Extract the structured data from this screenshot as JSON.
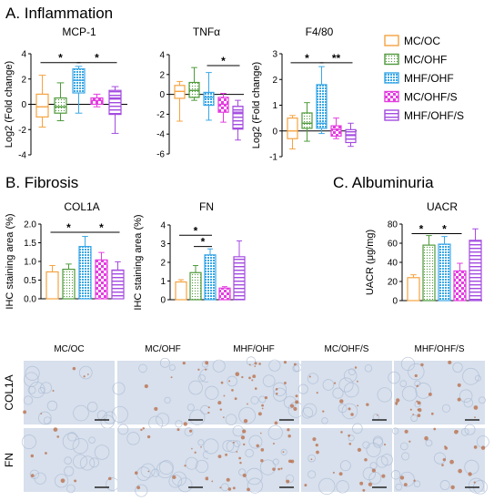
{
  "colors": {
    "MC_OC": "#f5a340",
    "MC_OHF": "#4e9a3a",
    "MHF_OHF": "#3ba7e6",
    "MC_OHF_S": "#e43ce0",
    "MHF_OHF_S": "#a44be0",
    "tissue": "#d7e0ec",
    "stain": "#b86a44"
  },
  "sections": {
    "inflammation": "A. Inflammation",
    "fibrosis": "B. Fibrosis",
    "albuminuria": "C. Albuminuria"
  },
  "legend": [
    "MC/OC",
    "MC/OHF",
    "MHF/OHF",
    "MC/OHF/S",
    "MHF/OHF/S"
  ],
  "chart_data": [
    {
      "type": "box",
      "id": "mcp1",
      "title": "MCP-1",
      "ylabel": "Log2 (Fold change)",
      "ylim": [
        -4,
        4
      ],
      "yticks": [
        "4",
        "2",
        "0",
        "-2",
        "-4"
      ],
      "ytick_values": [
        4,
        2,
        0,
        -2,
        -4
      ],
      "series": [
        {
          "name": "MC/OC",
          "min": -1.8,
          "q1": -1.0,
          "median": -0.2,
          "q3": 0.8,
          "max": 2.3
        },
        {
          "name": "MC/OHF",
          "min": -1.3,
          "q1": -0.7,
          "median": -0.2,
          "q3": 0.5,
          "max": 1.7
        },
        {
          "name": "MHF/OHF",
          "min": -0.7,
          "q1": 0.9,
          "median": 1.9,
          "q3": 2.8,
          "max": 3.0
        },
        {
          "name": "MC/OHF/S",
          "min": -0.2,
          "q1": 0.0,
          "median": 0.3,
          "q3": 0.5,
          "max": 0.8
        },
        {
          "name": "MHF/OHF/S",
          "min": -2.3,
          "q1": -0.8,
          "median": 0.5,
          "q3": 1.1,
          "max": 1.4
        }
      ],
      "significance": [
        {
          "from": 0,
          "to": 2,
          "label": "*",
          "y": 3.3
        },
        {
          "from": 2,
          "to": 4,
          "label": "*",
          "y": 3.3
        }
      ]
    },
    {
      "type": "box",
      "id": "tnfa",
      "title": "TNFα",
      "ylabel": "",
      "ylim": [
        -6,
        4
      ],
      "yticks": [
        "4",
        "2",
        "0",
        "-2",
        "-4",
        "-6"
      ],
      "ytick_values": [
        4,
        2,
        0,
        -2,
        -4,
        -6
      ],
      "series": [
        {
          "name": "MC/OC",
          "min": -2.7,
          "q1": -0.4,
          "median": 0.3,
          "q3": 0.9,
          "max": 1.3
        },
        {
          "name": "MC/OHF",
          "min": -0.6,
          "q1": -0.3,
          "median": 0.4,
          "q3": 1.2,
          "max": 2.7
        },
        {
          "name": "MHF/OHF",
          "min": -2.6,
          "q1": -1.1,
          "median": -0.3,
          "q3": 0.2,
          "max": 2.2
        },
        {
          "name": "MC/OHF/S",
          "min": -2.8,
          "q1": -1.8,
          "median": -1.0,
          "q3": -0.3,
          "max": 0.1
        },
        {
          "name": "MHF/OHF/S",
          "min": -4.6,
          "q1": -3.5,
          "median": -1.8,
          "q3": -1.2,
          "max": -0.6
        }
      ],
      "significance": [
        {
          "from": 2,
          "to": 4,
          "label": "*",
          "y": 2.9
        }
      ]
    },
    {
      "type": "box",
      "id": "f480",
      "title": "F4/80",
      "ylabel": "Log2 (Fold change)",
      "ylim": [
        -1,
        3
      ],
      "yticks": [
        "3",
        "2",
        "1",
        "0",
        "-1"
      ],
      "ytick_values": [
        3,
        2,
        1,
        0,
        -1
      ],
      "series": [
        {
          "name": "MC/OC",
          "min": -0.7,
          "q1": -0.3,
          "median": 0.0,
          "q3": 0.5,
          "max": 0.6
        },
        {
          "name": "MC/OHF",
          "min": -0.4,
          "q1": 0.1,
          "median": 0.3,
          "q3": 0.7,
          "max": 1.1
        },
        {
          "name": "MHF/OHF",
          "min": -0.1,
          "q1": 0.1,
          "median": 0.3,
          "q3": 1.8,
          "max": 2.5
        },
        {
          "name": "MC/OHF/S",
          "min": -0.3,
          "q1": -0.2,
          "median": 0.05,
          "q3": 0.2,
          "max": 0.5
        },
        {
          "name": "MHF/OHF/S",
          "min": -0.6,
          "q1": -0.45,
          "median": -0.15,
          "q3": 0.05,
          "max": 0.3
        }
      ],
      "significance": [
        {
          "from": 0,
          "to": 2,
          "label": "*",
          "y": 2.65
        },
        {
          "from": 2,
          "to": 4,
          "label": "**",
          "y": 2.65
        }
      ]
    },
    {
      "type": "bar",
      "id": "col1a",
      "title": "COL1A",
      "ylabel": "IHC staining area (%)",
      "ylim": [
        0,
        2.0
      ],
      "yticks": [
        "2.0",
        "1.5",
        "1.0",
        "0.5",
        "0.0"
      ],
      "ytick_values": [
        2,
        1.5,
        1,
        0.5,
        0
      ],
      "categories": [
        "MC/OC",
        "MC/OHF",
        "MHF/OHF",
        "MC/OHF/S",
        "MHF/OHF/S"
      ],
      "values": [
        0.72,
        0.79,
        1.4,
        1.04,
        0.77
      ],
      "errors": [
        0.17,
        0.14,
        0.27,
        0.2,
        0.22
      ],
      "significance": [
        {
          "from": 0,
          "to": 2,
          "label": "*",
          "y": 1.78
        },
        {
          "from": 2,
          "to": 4,
          "label": "*",
          "y": 1.78
        }
      ]
    },
    {
      "type": "bar",
      "id": "fn",
      "title": "FN",
      "ylabel": "IHC staining area (%)",
      "ylim": [
        0,
        4
      ],
      "yticks": [
        "4",
        "3",
        "2",
        "1",
        "0"
      ],
      "ytick_values": [
        4,
        3,
        2,
        1,
        0
      ],
      "categories": [
        "MC/OC",
        "MC/OHF",
        "MHF/OHF",
        "MC/OHF/S",
        "MHF/OHF/S"
      ],
      "values": [
        0.95,
        1.45,
        2.4,
        0.62,
        2.3
      ],
      "errors": [
        0.12,
        0.38,
        0.32,
        0.08,
        0.85
      ],
      "significance": [
        {
          "from": 0,
          "to": 2,
          "label": "*",
          "y": 3.45
        },
        {
          "from": 1,
          "to": 2,
          "label": "*",
          "y": 2.85
        }
      ]
    },
    {
      "type": "bar",
      "id": "uacr",
      "title": "UACR",
      "ylabel": "UACR (μg/mg)",
      "ylim": [
        0,
        80
      ],
      "yticks": [
        "80",
        "60",
        "40",
        "20",
        "0"
      ],
      "ytick_values": [
        80,
        60,
        40,
        20,
        0
      ],
      "categories": [
        "MC/OC",
        "MC/OHF",
        "MHF/OHF",
        "MC/OHF/S",
        "MHF/OHF/S"
      ],
      "values": [
        24,
        58,
        59,
        31,
        63
      ],
      "errors": [
        3,
        10,
        8,
        8,
        12
      ],
      "significance": [
        {
          "from": 0,
          "to": 1,
          "label": "*",
          "y": 70
        },
        {
          "from": 1,
          "to": 3,
          "label": "*",
          "y": 70
        }
      ]
    }
  ],
  "micrographs": {
    "columns": [
      "MC/OC",
      "MC/OHF",
      "MHF/OHF",
      "MC/OHF/S",
      "MHF/OHF/S"
    ],
    "rows": [
      "COL1A",
      "FN"
    ],
    "stain_level": [
      [
        0.15,
        0.2,
        0.9,
        0.3,
        0.5
      ],
      [
        0.2,
        0.35,
        0.75,
        0.45,
        0.5
      ]
    ]
  }
}
